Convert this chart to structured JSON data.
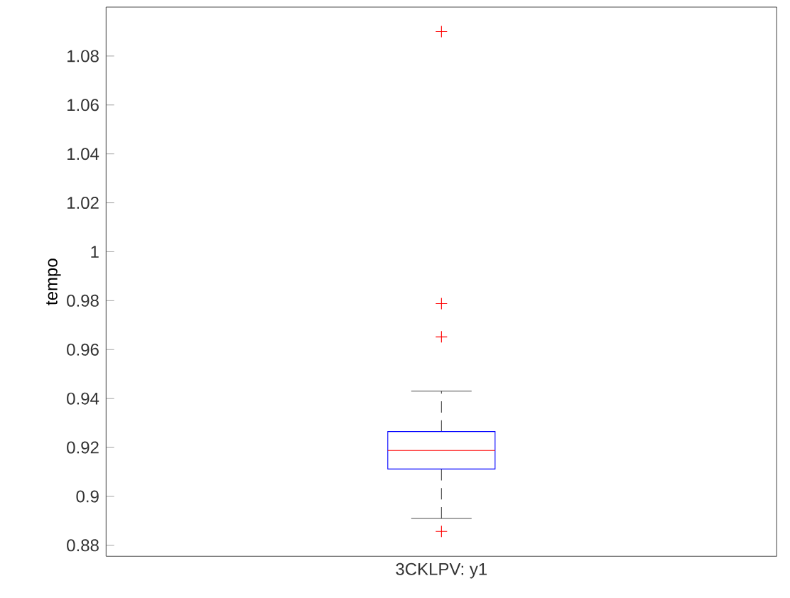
{
  "chart_data": {
    "type": "box",
    "ylabel": "tempo",
    "categories": [
      "3CKLPV: y1"
    ],
    "boxes": [
      {
        "low": 0.891,
        "q1": 0.9112,
        "median": 0.9188,
        "q3": 0.9265,
        "high": 0.943,
        "outliers": [
          0.8857,
          0.9652,
          0.9788,
          1.09
        ]
      }
    ],
    "ylim": [
      0.8755,
      1.1
    ],
    "yticks": [
      {
        "value": 0.88,
        "label": "0.88"
      },
      {
        "value": 0.9,
        "label": "0.9"
      },
      {
        "value": 0.92,
        "label": "0.92"
      },
      {
        "value": 0.94,
        "label": "0.94"
      },
      {
        "value": 0.96,
        "label": "0.96"
      },
      {
        "value": 0.98,
        "label": "0.98"
      },
      {
        "value": 1,
        "label": "1"
      },
      {
        "value": 1.02,
        "label": "1.02"
      },
      {
        "value": 1.04,
        "label": "1.04"
      },
      {
        "value": 1.06,
        "label": "1.06"
      },
      {
        "value": 1.08,
        "label": "1.08"
      }
    ],
    "grid": false
  }
}
